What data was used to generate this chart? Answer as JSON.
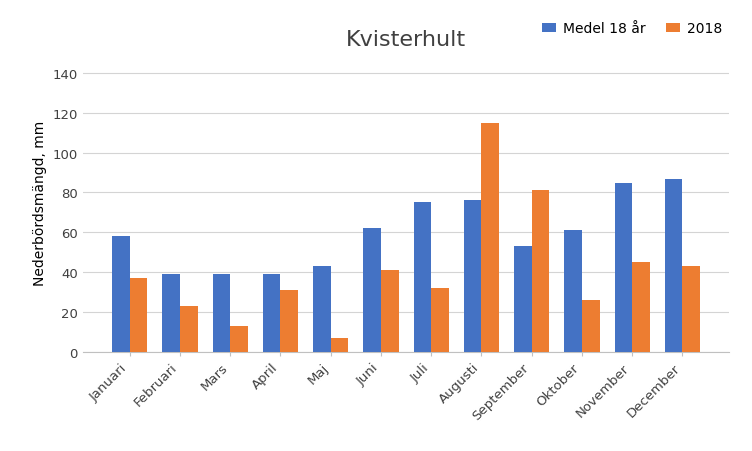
{
  "title": "Kvisterhult",
  "ylabel": "Nederbördsmängd, mm",
  "categories": [
    "Januari",
    "Februari",
    "Mars",
    "April",
    "Maj",
    "Juni",
    "Juli",
    "Augusti",
    "September",
    "Oktober",
    "November",
    "December"
  ],
  "medel_18ar": [
    58,
    39,
    39,
    39,
    43,
    62,
    75,
    76,
    53,
    61,
    85,
    87
  ],
  "year_2018": [
    37,
    23,
    13,
    31,
    7,
    41,
    32,
    115,
    81,
    26,
    45,
    43
  ],
  "color_medel": "#4472C4",
  "color_2018": "#ED7D31",
  "legend_medel": "Medel 18 år",
  "legend_2018": "2018",
  "ylim": [
    0,
    150
  ],
  "yticks": [
    0,
    20,
    40,
    60,
    80,
    100,
    120,
    140
  ],
  "background_color": "#ffffff",
  "grid_color": "#d4d4d4",
  "title_fontsize": 16,
  "axis_fontsize": 10,
  "tick_fontsize": 9.5,
  "legend_fontsize": 10
}
